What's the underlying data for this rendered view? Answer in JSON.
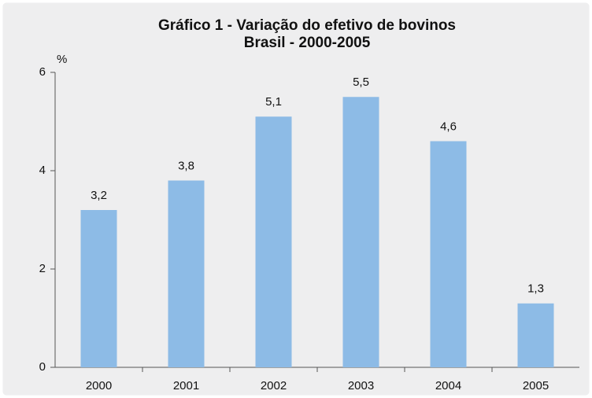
{
  "chart_data": {
    "type": "bar",
    "title": "Gráfico 1 - Variação do efetivo de bovinos",
    "subtitle": "Brasil - 2000-2005",
    "ylabel": "%",
    "categories": [
      "2000",
      "2001",
      "2002",
      "2003",
      "2004",
      "2005"
    ],
    "values": [
      3.2,
      3.8,
      5.1,
      5.5,
      4.6,
      1.3
    ],
    "value_labels": [
      "3,2",
      "3,8",
      "5,1",
      "5,5",
      "4,6",
      "1,3"
    ],
    "color": "#8dbbe6",
    "ylim": [
      0,
      6
    ],
    "yticks": [
      0,
      2,
      4,
      6
    ],
    "grid": false
  }
}
